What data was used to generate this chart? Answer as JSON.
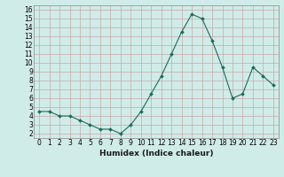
{
  "x": [
    0,
    1,
    2,
    3,
    4,
    5,
    6,
    7,
    8,
    9,
    10,
    11,
    12,
    13,
    14,
    15,
    16,
    17,
    18,
    19,
    20,
    21,
    22,
    23
  ],
  "y": [
    4.5,
    4.5,
    4.0,
    4.0,
    3.5,
    3.0,
    2.5,
    2.5,
    2.0,
    3.0,
    4.5,
    6.5,
    8.5,
    11.0,
    13.5,
    15.5,
    15.0,
    12.5,
    9.5,
    6.0,
    6.5,
    9.5,
    8.5,
    7.5
  ],
  "xlabel": "Humidex (Indice chaleur)",
  "bg_color": "#d0ece8",
  "grid_color": "#c8a8a8",
  "line_color": "#1a6b5a",
  "marker_color": "#1a6b5a",
  "xlim": [
    -0.5,
    23.5
  ],
  "ylim": [
    1.5,
    16.5
  ],
  "yticks": [
    2,
    3,
    4,
    5,
    6,
    7,
    8,
    9,
    10,
    11,
    12,
    13,
    14,
    15,
    16
  ],
  "xticks": [
    0,
    1,
    2,
    3,
    4,
    5,
    6,
    7,
    8,
    9,
    10,
    11,
    12,
    13,
    14,
    15,
    16,
    17,
    18,
    19,
    20,
    21,
    22,
    23
  ],
  "xtick_labels": [
    "0",
    "1",
    "2",
    "3",
    "4",
    "5",
    "6",
    "7",
    "8",
    "9",
    "10",
    "11",
    "12",
    "13",
    "14",
    "15",
    "16",
    "17",
    "18",
    "19",
    "20",
    "21",
    "22",
    "23"
  ],
  "ytick_labels": [
    "2",
    "3",
    "4",
    "5",
    "6",
    "7",
    "8",
    "9",
    "10",
    "11",
    "12",
    "13",
    "14",
    "15",
    "16"
  ],
  "tick_fontsize": 5.5,
  "xlabel_fontsize": 6.5
}
